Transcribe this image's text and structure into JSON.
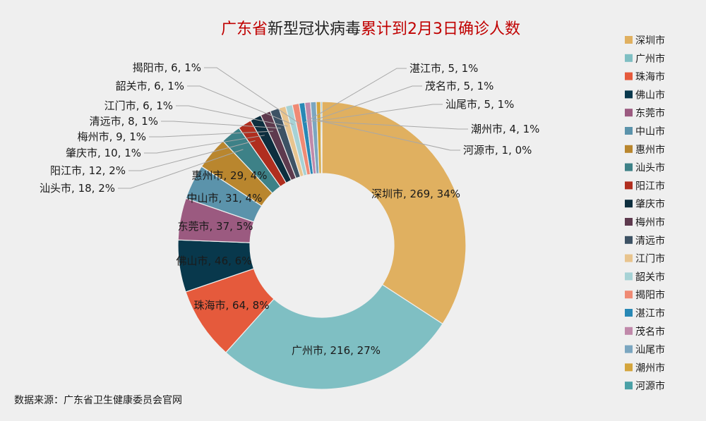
{
  "chart_data": {
    "type": "pie",
    "title_parts": [
      {
        "text": "广东省",
        "color": "#c00000"
      },
      {
        "text": "新型冠状病毒",
        "color": "#222222"
      },
      {
        "text": "累计到2月3日确诊人数",
        "color": "#c00000"
      }
    ],
    "source": "数据来源：广东省卫生健康委员会官网",
    "legend_position": "right",
    "slices": [
      {
        "name": "深圳市",
        "value": 269,
        "pct": "34%",
        "color": "#e0b060"
      },
      {
        "name": "广州市",
        "value": 216,
        "pct": "27%",
        "color": "#7fbfc3"
      },
      {
        "name": "珠海市",
        "value": 64,
        "pct": "8%",
        "color": "#e55a3c"
      },
      {
        "name": "佛山市",
        "value": 46,
        "pct": "6%",
        "color": "#08384c"
      },
      {
        "name": "东莞市",
        "value": 37,
        "pct": "5%",
        "color": "#9b5a80"
      },
      {
        "name": "中山市",
        "value": 31,
        "pct": "4%",
        "color": "#5b93ab"
      },
      {
        "name": "惠州市",
        "value": 29,
        "pct": "4%",
        "color": "#b9862e"
      },
      {
        "name": "汕头市",
        "value": 18,
        "pct": "2%",
        "color": "#3d8187"
      },
      {
        "name": "阳江市",
        "value": 12,
        "pct": "2%",
        "color": "#b02e1f"
      },
      {
        "name": "肇庆市",
        "value": 10,
        "pct": "1%",
        "color": "#0d2e3e"
      },
      {
        "name": "梅州市",
        "value": 9,
        "pct": "1%",
        "color": "#5e3a4e"
      },
      {
        "name": "清远市",
        "value": 8,
        "pct": "1%",
        "color": "#3d5264"
      },
      {
        "name": "江门市",
        "value": 6,
        "pct": "1%",
        "color": "#e8c48e"
      },
      {
        "name": "韶关市",
        "value": 6,
        "pct": "1%",
        "color": "#a6d2d5"
      },
      {
        "name": "揭阳市",
        "value": 6,
        "pct": "1%",
        "color": "#ef8a74"
      },
      {
        "name": "湛江市",
        "value": 5,
        "pct": "1%",
        "color": "#2888b5"
      },
      {
        "name": "茂名市",
        "value": 5,
        "pct": "1%",
        "color": "#c089aa"
      },
      {
        "name": "汕尾市",
        "value": 5,
        "pct": "1%",
        "color": "#7ba6c0"
      },
      {
        "name": "潮州市",
        "value": 4,
        "pct": "1%",
        "color": "#d4a53c"
      },
      {
        "name": "河源市",
        "value": 1,
        "pct": "0%",
        "color": "#4aa0a6"
      }
    ]
  }
}
